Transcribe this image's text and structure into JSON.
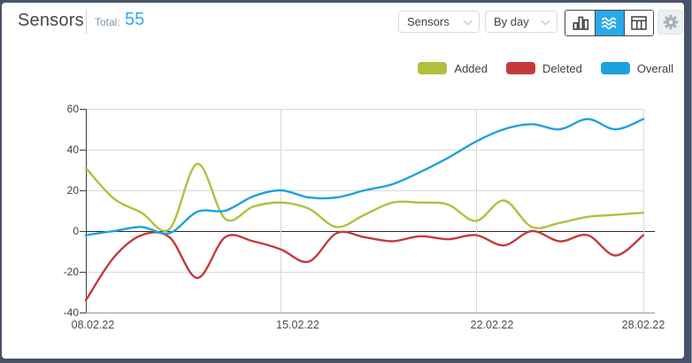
{
  "header": {
    "title": "Sensors",
    "total_label": "Total:",
    "total_value": "55"
  },
  "toolbar": {
    "entity_select": {
      "value": "Sensors"
    },
    "interval_select": {
      "value": "By day"
    },
    "view_buttons": [
      {
        "name": "bar-chart-view",
        "active": false
      },
      {
        "name": "line-chart-view",
        "active": true
      },
      {
        "name": "table-view",
        "active": false
      }
    ]
  },
  "legend": {
    "items": [
      {
        "label": "Added",
        "color": "#b1bf3d"
      },
      {
        "label": "Deleted",
        "color": "#c43a3a"
      },
      {
        "label": "Overall",
        "color": "#1ea2dd"
      }
    ]
  },
  "chart_data": {
    "type": "line",
    "title": "",
    "xlabel": "",
    "ylabel": "",
    "ylim": [
      -40,
      60
    ],
    "y_ticks": [
      60,
      40,
      20,
      0,
      -20,
      -40
    ],
    "grid": true,
    "legend_position": "top-right",
    "days_total": 21,
    "x_tick_labels": [
      "08.02.22",
      "15.02.22",
      "22.02.22",
      "28.02.22"
    ],
    "x_tick_day_index": [
      0,
      7,
      14,
      20
    ],
    "series": [
      {
        "name": "Added",
        "color": "#b1bf3d",
        "values": [
          31,
          16,
          9,
          1,
          33,
          6,
          12,
          14,
          11,
          2,
          8,
          14,
          14,
          13,
          5,
          15,
          2,
          4,
          7,
          8,
          9
        ]
      },
      {
        "name": "Deleted",
        "color": "#c43a3a",
        "values": [
          -34,
          -13,
          -2,
          -3,
          -23,
          -3,
          -5,
          -9,
          -15,
          -1,
          -3,
          -5,
          -2.5,
          -4,
          -2,
          -7,
          0,
          -5,
          -2,
          -12,
          -2
        ]
      },
      {
        "name": "Overall",
        "color": "#1ea2dd",
        "values": [
          -2,
          0,
          2,
          -1,
          9.5,
          10,
          17,
          20,
          16.5,
          16.5,
          20,
          23,
          29,
          36,
          44,
          50,
          52.5,
          50,
          55,
          50,
          55
        ]
      }
    ]
  }
}
